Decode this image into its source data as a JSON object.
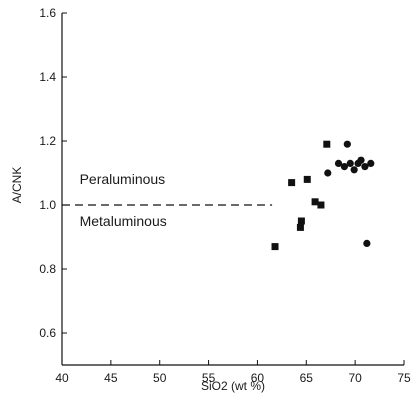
{
  "chart_data": {
    "type": "scatter",
    "title": "",
    "xlabel": "SiO2 (wt %)",
    "ylabel": "A/CNK",
    "xlim": [
      40,
      75
    ],
    "ylim": [
      0.5,
      1.6
    ],
    "x_ticks": [
      40,
      45,
      50,
      55,
      60,
      65,
      70,
      75
    ],
    "x_tick_labels": [
      "40",
      "45",
      "50",
      "55",
      "60",
      "65",
      "70",
      "75"
    ],
    "y_ticks": [
      0.6,
      0.8,
      1.0,
      1.2,
      1.4,
      1.6
    ],
    "y_tick_labels": [
      "0.6",
      "0.8",
      "1.0",
      "1.2",
      "1.4",
      "1.6"
    ],
    "grid": false,
    "legend": "none",
    "series": [
      {
        "marker": "square",
        "color": "#111111",
        "points": [
          {
            "x": 61.8,
            "y": 0.87
          },
          {
            "x": 63.5,
            "y": 1.07
          },
          {
            "x": 64.4,
            "y": 0.93
          },
          {
            "x": 64.5,
            "y": 0.95
          },
          {
            "x": 65.1,
            "y": 1.08
          },
          {
            "x": 65.9,
            "y": 1.01
          },
          {
            "x": 66.5,
            "y": 1.0
          },
          {
            "x": 67.1,
            "y": 1.19
          }
        ]
      },
      {
        "marker": "circle",
        "color": "#111111",
        "points": [
          {
            "x": 67.2,
            "y": 1.1
          },
          {
            "x": 68.3,
            "y": 1.13
          },
          {
            "x": 68.9,
            "y": 1.12
          },
          {
            "x": 69.2,
            "y": 1.19
          },
          {
            "x": 69.5,
            "y": 1.13
          },
          {
            "x": 69.9,
            "y": 1.11
          },
          {
            "x": 70.3,
            "y": 1.13
          },
          {
            "x": 70.6,
            "y": 1.14
          },
          {
            "x": 71.0,
            "y": 1.12
          },
          {
            "x": 71.2,
            "y": 0.88
          },
          {
            "x": 71.6,
            "y": 1.13
          }
        ]
      }
    ],
    "reference_line": {
      "y": 1.0,
      "x_from": 40,
      "x_to": 61.5,
      "style": "dashed"
    },
    "annotations": [
      {
        "text": "Peraluminous",
        "x": 41.8,
        "y": 1.065
      },
      {
        "text": "Metaluminous",
        "x": 41.8,
        "y": 0.935
      }
    ]
  }
}
